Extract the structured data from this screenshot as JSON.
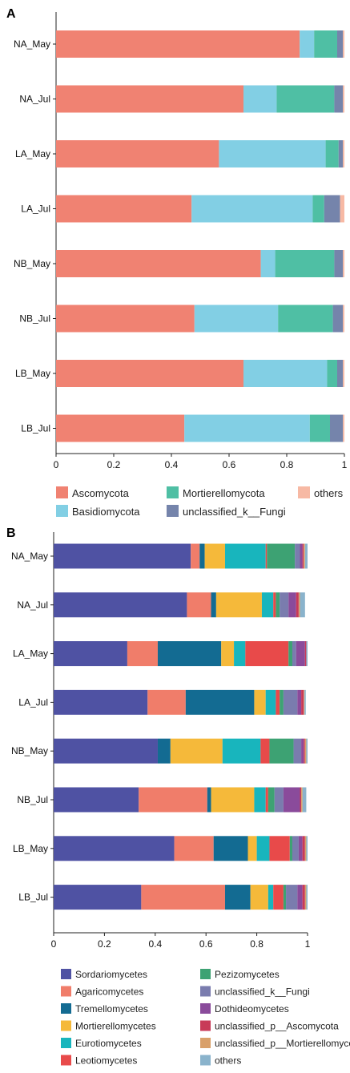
{
  "chart_data": [
    {
      "panel": "A",
      "type": "bar",
      "orientation": "horizontal",
      "stacked": true,
      "categories": [
        "NA_May",
        "NA_Jul",
        "LA_May",
        "LA_Jul",
        "NB_May",
        "NB_Jul",
        "LB_May",
        "LB_Jul"
      ],
      "xlim": [
        0,
        1
      ],
      "xticks": [
        "0",
        "0.2",
        "0.4",
        "0.6",
        "0.8",
        "1"
      ],
      "grid": false,
      "legend_position": "bottom",
      "series": [
        {
          "name": "Ascomycota",
          "color": "#f08272",
          "values": [
            0.845,
            0.65,
            0.565,
            0.47,
            0.71,
            0.48,
            0.65,
            0.445
          ]
        },
        {
          "name": "Basidiomycota",
          "color": "#82cfe4",
          "values": [
            0.05,
            0.115,
            0.37,
            0.42,
            0.05,
            0.29,
            0.29,
            0.435
          ]
        },
        {
          "name": "Mortierellomycota",
          "color": "#4fbfa4",
          "values": [
            0.08,
            0.2,
            0.045,
            0.04,
            0.205,
            0.19,
            0.035,
            0.07
          ]
        },
        {
          "name": "unclassified_k__Fungi",
          "color": "#7584ab",
          "values": [
            0.02,
            0.03,
            0.015,
            0.055,
            0.03,
            0.035,
            0.02,
            0.045
          ]
        },
        {
          "name": "others",
          "color": "#f7b9a4",
          "values": [
            0.005,
            0.005,
            0.005,
            0.015,
            0.005,
            0.005,
            0.005,
            0.005
          ]
        }
      ]
    },
    {
      "panel": "B",
      "type": "bar",
      "orientation": "horizontal",
      "stacked": true,
      "categories": [
        "NA_May",
        "NA_Jul",
        "LA_May",
        "LA_Jul",
        "NB_May",
        "NB_Jul",
        "LB_May",
        "LB_Jul"
      ],
      "xlim": [
        0,
        1
      ],
      "xticks": [
        "0",
        "0.2",
        "0.4",
        "0.6",
        "0.8",
        "1"
      ],
      "grid": false,
      "legend_position": "bottom",
      "series": [
        {
          "name": "Sordariomycetes",
          "color": "#4f52a3",
          "values": [
            0.54,
            0.525,
            0.29,
            0.37,
            0.41,
            0.335,
            0.475,
            0.345
          ]
        },
        {
          "name": "Agaricomycetes",
          "color": "#f07d6a",
          "values": [
            0.035,
            0.095,
            0.12,
            0.15,
            0,
            0.27,
            0.155,
            0.33
          ]
        },
        {
          "name": "Tremellomycetes",
          "color": "#136b92",
          "values": [
            0.02,
            0.02,
            0.25,
            0.27,
            0.05,
            0.015,
            0.135,
            0.1
          ]
        },
        {
          "name": "Mortierellomycetes",
          "color": "#f5b93a",
          "values": [
            0.08,
            0.18,
            0.05,
            0.045,
            0.205,
            0.17,
            0.035,
            0.07
          ]
        },
        {
          "name": "Eurotiomycetes",
          "color": "#18b5bd",
          "values": [
            0.16,
            0.045,
            0.045,
            0.04,
            0.15,
            0.045,
            0.05,
            0.02
          ]
        },
        {
          "name": "Leotiomycetes",
          "color": "#e84a4a",
          "values": [
            0.005,
            0.01,
            0.17,
            0.015,
            0.035,
            0.01,
            0.08,
            0.04
          ]
        },
        {
          "name": "Pezizomycetes",
          "color": "#3da273",
          "values": [
            0.11,
            0.015,
            0.015,
            0.015,
            0.095,
            0.025,
            0.01,
            0.01
          ]
        },
        {
          "name": "unclassified_k__Fungi",
          "color": "#7a7cae",
          "values": [
            0.02,
            0.035,
            0.015,
            0.055,
            0.03,
            0.035,
            0.025,
            0.045
          ]
        },
        {
          "name": "Dothideomycetes",
          "color": "#8a4b9b",
          "values": [
            0.01,
            0.03,
            0.035,
            0.015,
            0.01,
            0.065,
            0.015,
            0.02
          ]
        },
        {
          "name": "unclassified_p__Ascomycota",
          "color": "#c83a58",
          "values": [
            0.005,
            0.01,
            0.005,
            0.01,
            0.005,
            0.005,
            0.01,
            0.01
          ]
        },
        {
          "name": "unclassified_p__Mortierellomycota",
          "color": "#d9a06a",
          "values": [
            0.005,
            0.005,
            0,
            0.003,
            0.005,
            0.005,
            0.005,
            0.005
          ]
        },
        {
          "name": "others",
          "color": "#8ab3cc",
          "values": [
            0.01,
            0.02,
            0.005,
            0.005,
            0.005,
            0.015,
            0.005,
            0.005
          ]
        }
      ]
    }
  ]
}
